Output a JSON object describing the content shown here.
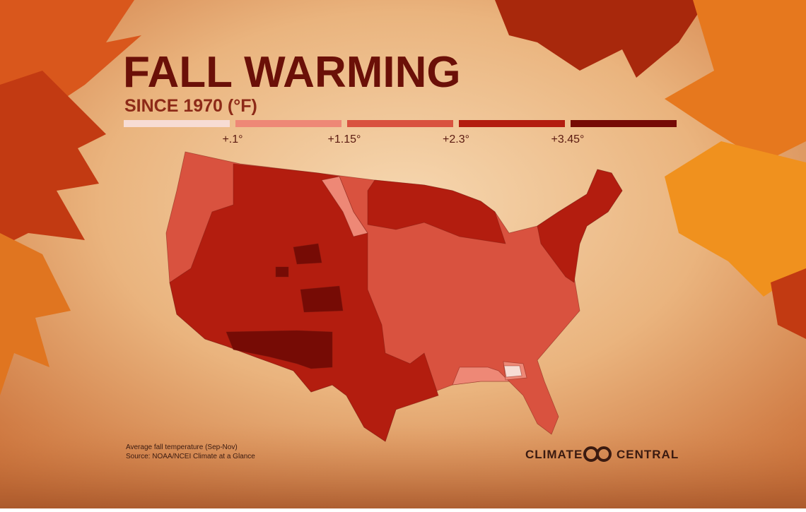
{
  "header": {
    "title": "FALL WARMING",
    "subtitle": "SINCE 1970 (°F)"
  },
  "legend": {
    "colors": [
      "#f7dcd4",
      "#ee8876",
      "#d9523f",
      "#b31d0f",
      "#760b05"
    ],
    "labels": [
      "+.1°",
      "+1.15°",
      "+2.3°",
      "+3.45°"
    ]
  },
  "footer": {
    "notes": [
      "Average fall temperature (Sep-Nov)",
      "Source: NOAA/NCEI Climate at a Glance"
    ],
    "brand_left": "CLIMATE",
    "brand_right": "CENTRAL"
  }
}
